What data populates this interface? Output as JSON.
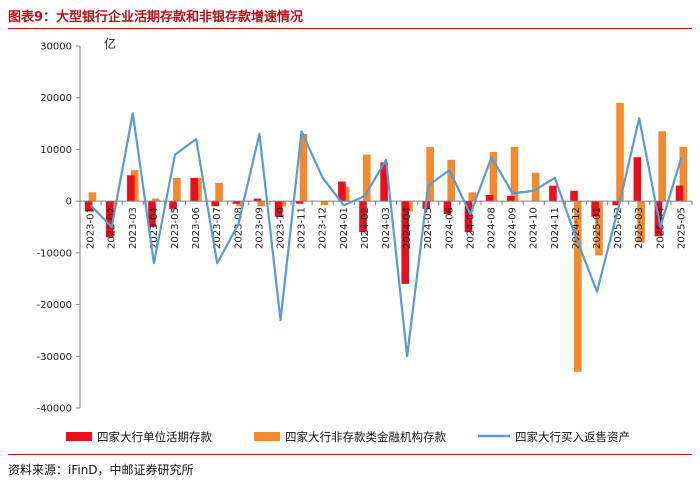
{
  "figure": {
    "title": "图表9：大型银行企业活期存款和非银存款增速情况",
    "source": "资料来源：iFinD，中邮证券研究所"
  },
  "colors": {
    "red": "#e8101c",
    "orange": "#f28b30",
    "blue": "#5b9bd5",
    "axis": "#7f7f7f",
    "title": "#b5121b"
  },
  "chart_data": {
    "type": "bar",
    "unit_label": "亿",
    "ylim": [
      -40000,
      30000
    ],
    "yticks": [
      -40000,
      -30000,
      -20000,
      -10000,
      0,
      10000,
      20000,
      30000
    ],
    "grid": false,
    "legend_position": "bottom",
    "categories": [
      "2023-01",
      "2023-02",
      "2023-03",
      "2023-04",
      "2023-05",
      "2023-06",
      "2023-07",
      "2023-08",
      "2023-09",
      "2023-10",
      "2023-11",
      "2023-12",
      "2024-01",
      "2024-02",
      "2024-03",
      "2024-04",
      "2024-05",
      "2024-06",
      "2024-07",
      "2024-08",
      "2024-09",
      "2024-10",
      "2024-11",
      "2024-12",
      "2025-01",
      "2025-02",
      "2025-03",
      "2025-04",
      "2025-05"
    ],
    "series": [
      {
        "name": "四家大行单位活期存款",
        "kind": "bar",
        "color": "#e8101c",
        "values": [
          -2000,
          -7000,
          5000,
          -5000,
          -1500,
          4500,
          -1000,
          -500,
          500,
          -3000,
          -500,
          0,
          3800,
          -6000,
          7500,
          -16000,
          -1500,
          -2500,
          -6000,
          1200,
          1000,
          0,
          3000,
          2000,
          -3000,
          -800,
          8500,
          -6800,
          3000
        ]
      },
      {
        "name": "四家大行非存款类金融机构存款",
        "kind": "bar",
        "color": "#f28b30",
        "values": [
          1700,
          -1000,
          6000,
          500,
          4500,
          4500,
          3500,
          -1000,
          -1000,
          -1000,
          13000,
          -800,
          2800,
          9000,
          0,
          -2000,
          10500,
          8000,
          1700,
          9500,
          10500,
          5500,
          0,
          -33000,
          -10500,
          19000,
          -8000,
          13500,
          10500
        ]
      },
      {
        "name": "四家大行买入返售资产",
        "kind": "line",
        "color": "#5b9bd5",
        "values": [
          -800,
          -5000,
          17000,
          -12000,
          9000,
          12000,
          -12000,
          -4500,
          13000,
          -23000,
          13500,
          4500,
          -800,
          1000,
          8000,
          -30000,
          3000,
          6000,
          -2500,
          8500,
          1500,
          2000,
          4500,
          -7000,
          -17500,
          -1500,
          16000,
          -5000,
          8500
        ]
      }
    ]
  }
}
